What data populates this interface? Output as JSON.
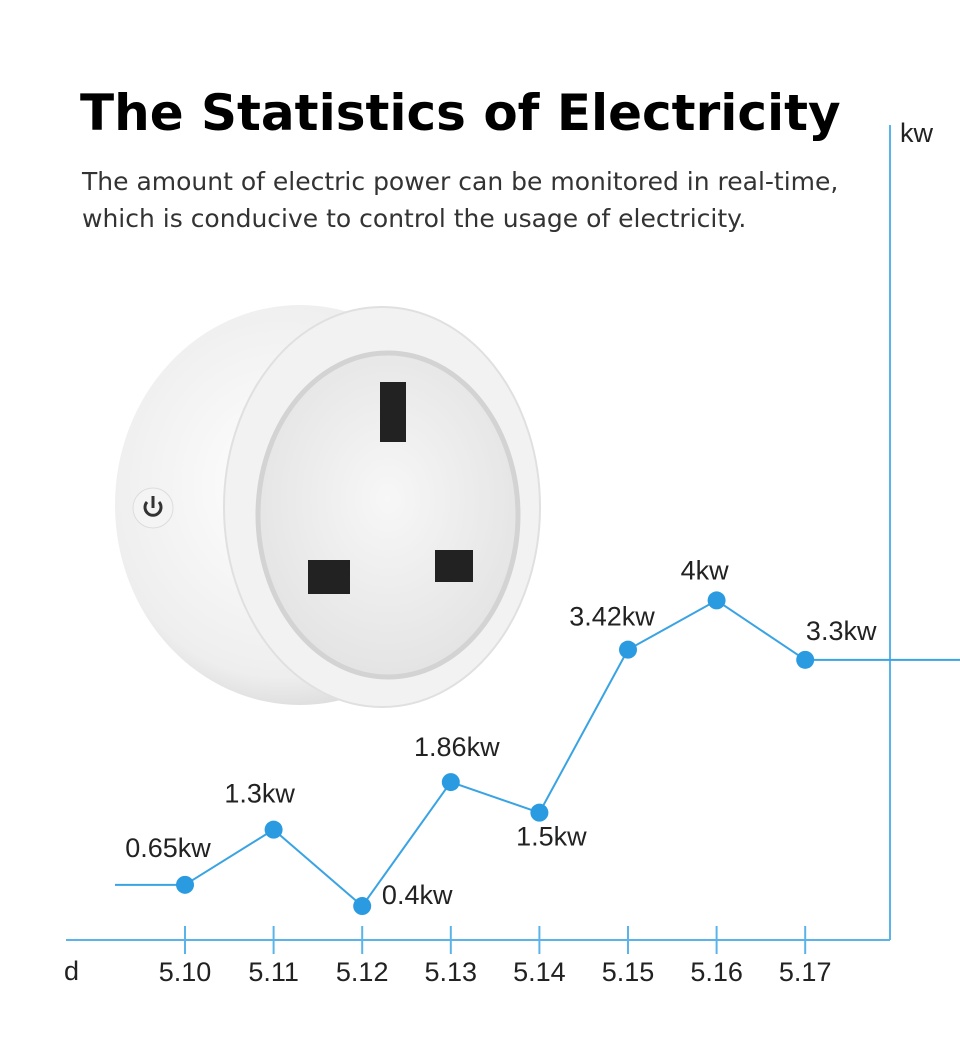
{
  "chart_data": {
    "type": "line",
    "title": "The Statistics of Electricity",
    "subtitle": [
      "The amount of electric power can be monitored in real-time,",
      "which is conducive to control the usage of electricity."
    ],
    "x_label": "d",
    "y_label": "kw",
    "categories": [
      "5.10",
      "5.11",
      "5.12",
      "5.13",
      "5.14",
      "5.15",
      "5.16",
      "5.17"
    ],
    "series": [
      {
        "name": "kw",
        "color": "#3aa3e3",
        "values": [
          0.65,
          1.3,
          0.4,
          1.86,
          1.5,
          3.42,
          4,
          3.3
        ],
        "value_labels": [
          "0.65kw",
          "1.3kw",
          "0.4kw",
          "1.86kw",
          "1.5kw",
          "3.42kw",
          "4kw",
          "3.3kw"
        ]
      }
    ],
    "ylim": [
      0,
      9.6
    ]
  }
}
